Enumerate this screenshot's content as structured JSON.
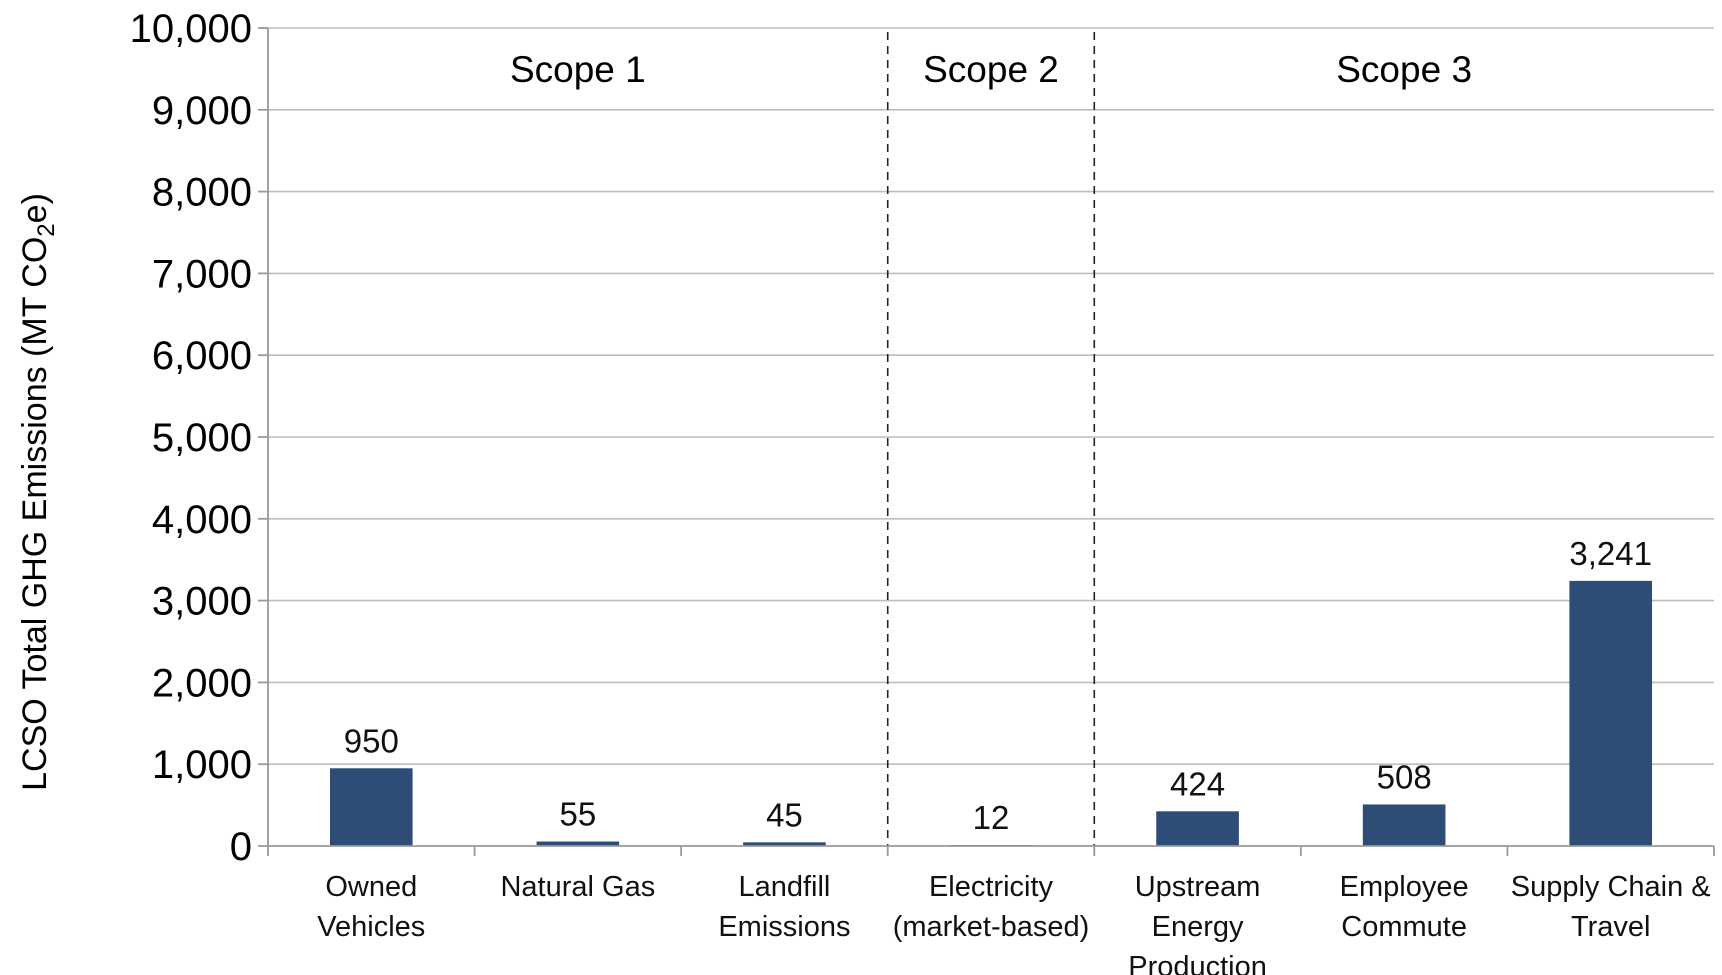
{
  "chart_data": {
    "type": "bar",
    "title": "",
    "ylabel": "LCSO Total GHG Emissions (MT CO",
    "ylabel_sub": "2",
    "ylabel_end": "e)",
    "xlabel": "",
    "ylim": [
      0,
      10000
    ],
    "yticks": [
      "0",
      "1,000",
      "2,000",
      "3,000",
      "4,000",
      "5,000",
      "6,000",
      "7,000",
      "8,000",
      "9,000",
      "10,000"
    ],
    "bar_color": "#2e4d76",
    "grid": true,
    "categories": [
      [
        "Owned",
        "Vehicles"
      ],
      [
        "Natural Gas"
      ],
      [
        "Landfill",
        "Emissions"
      ],
      [
        "Electricity",
        "(market-based)"
      ],
      [
        "Upstream",
        "Energy",
        "Production"
      ],
      [
        "Employee",
        "Commute"
      ],
      [
        "Supply Chain &",
        "Travel"
      ]
    ],
    "values": [
      950,
      55,
      45,
      12,
      424,
      508,
      3241
    ],
    "value_labels": [
      "950",
      "55",
      "45",
      "12",
      "424",
      "508",
      "3,241"
    ],
    "scopes": [
      {
        "label": "Scope 1",
        "start": 0,
        "end": 3
      },
      {
        "label": "Scope 2",
        "start": 3,
        "end": 4
      },
      {
        "label": "Scope 3",
        "start": 4,
        "end": 7
      }
    ]
  }
}
